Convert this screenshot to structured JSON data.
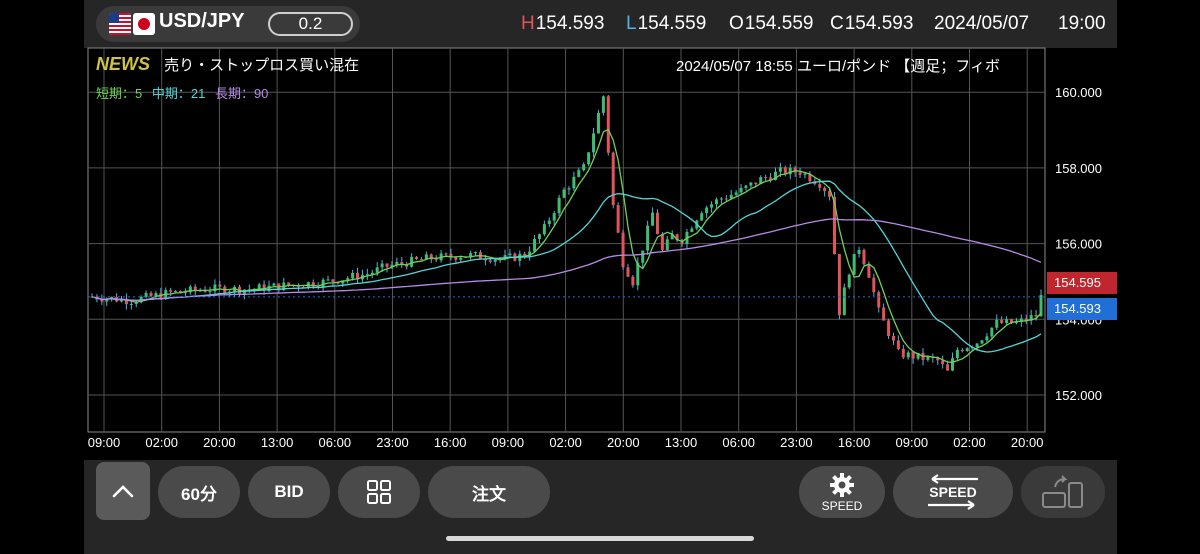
{
  "header": {
    "pair": "USD/JPY",
    "spread": "0.2",
    "ohlc": [
      {
        "key": "H",
        "value": "154.593",
        "color": "#e2545a"
      },
      {
        "key": "L",
        "value": "154.559",
        "color": "#4fb2e8"
      },
      {
        "key": "O",
        "value": "154.559",
        "color": "#ffffff"
      },
      {
        "key": "C",
        "value": "154.593",
        "color": "#ffffff"
      }
    ],
    "date": "2024/05/07",
    "time": "19:00"
  },
  "news": {
    "tag": "NEWS",
    "headline": "売り・ストップロス買い混在",
    "right": "2024/05/07 18:55 ユーロ/ポンド 【週足；フィボ"
  },
  "ma_legend": [
    {
      "text": "短期：5",
      "color": "#6fd15a"
    },
    {
      "text": "中期：21",
      "color": "#52d6d8"
    },
    {
      "text": "長期：90",
      "color": "#b889e8"
    }
  ],
  "price_tags": [
    {
      "value": "154.595",
      "color": "#c0262d"
    },
    {
      "value": "154.593",
      "color": "#1f6fd6"
    }
  ],
  "toolbar": {
    "timeframe": "60分",
    "side": "BID",
    "order": "注文",
    "speed1": "SPEED",
    "speed2": "SPEED"
  },
  "chart_data": {
    "type": "candlestick",
    "ylim": [
      151.0,
      161.0
    ],
    "y_ticks": [
      "152.000",
      "154.000",
      "156.000",
      "158.000",
      "160.000"
    ],
    "x_ticks": [
      "09:00",
      "02:00",
      "20:00",
      "13:00",
      "06:00",
      "23:00",
      "16:00",
      "09:00",
      "02:00",
      "20:00",
      "13:00",
      "06:00",
      "23:00",
      "16:00",
      "09:00",
      "02:00",
      "20:00"
    ],
    "close_path": [
      [
        0,
        154.6
      ],
      [
        8,
        154.5
      ],
      [
        16,
        154.7
      ],
      [
        24,
        154.8
      ],
      [
        32,
        154.8
      ],
      [
        40,
        154.9
      ],
      [
        48,
        155.0
      ],
      [
        56,
        155.2
      ],
      [
        60,
        155.4
      ],
      [
        68,
        155.6
      ],
      [
        76,
        155.7
      ],
      [
        84,
        155.6
      ],
      [
        88,
        155.7
      ],
      [
        92,
        156.4
      ],
      [
        96,
        157.4
      ],
      [
        100,
        158.0
      ],
      [
        104,
        159.9
      ],
      [
        106,
        157.0
      ],
      [
        108,
        155.5
      ],
      [
        110,
        155.0
      ],
      [
        114,
        156.8
      ],
      [
        116,
        155.8
      ],
      [
        118,
        156.2
      ],
      [
        120,
        156.1
      ],
      [
        124,
        156.9
      ],
      [
        128,
        157.2
      ],
      [
        132,
        157.4
      ],
      [
        136,
        157.7
      ],
      [
        140,
        157.9
      ],
      [
        144,
        157.9
      ],
      [
        148,
        157.6
      ],
      [
        150,
        157.3
      ],
      [
        152,
        154.2
      ],
      [
        154,
        155.3
      ],
      [
        156,
        155.9
      ],
      [
        158,
        155.2
      ],
      [
        160,
        154.2
      ],
      [
        164,
        153.1
      ],
      [
        168,
        153.0
      ],
      [
        172,
        152.9
      ],
      [
        174,
        152.6
      ],
      [
        176,
        153.2
      ],
      [
        180,
        153.4
      ],
      [
        184,
        153.9
      ],
      [
        188,
        153.9
      ],
      [
        192,
        154.1
      ],
      [
        193,
        154.59
      ]
    ],
    "ma_short_color": "#6fd15a",
    "ma_mid_color": "#52d6d8",
    "ma_long_color": "#b889e8",
    "up_color": "#3fbd73",
    "down_color": "#e2545a",
    "wick_color": "#4fb2e8",
    "current_price": 154.593
  }
}
